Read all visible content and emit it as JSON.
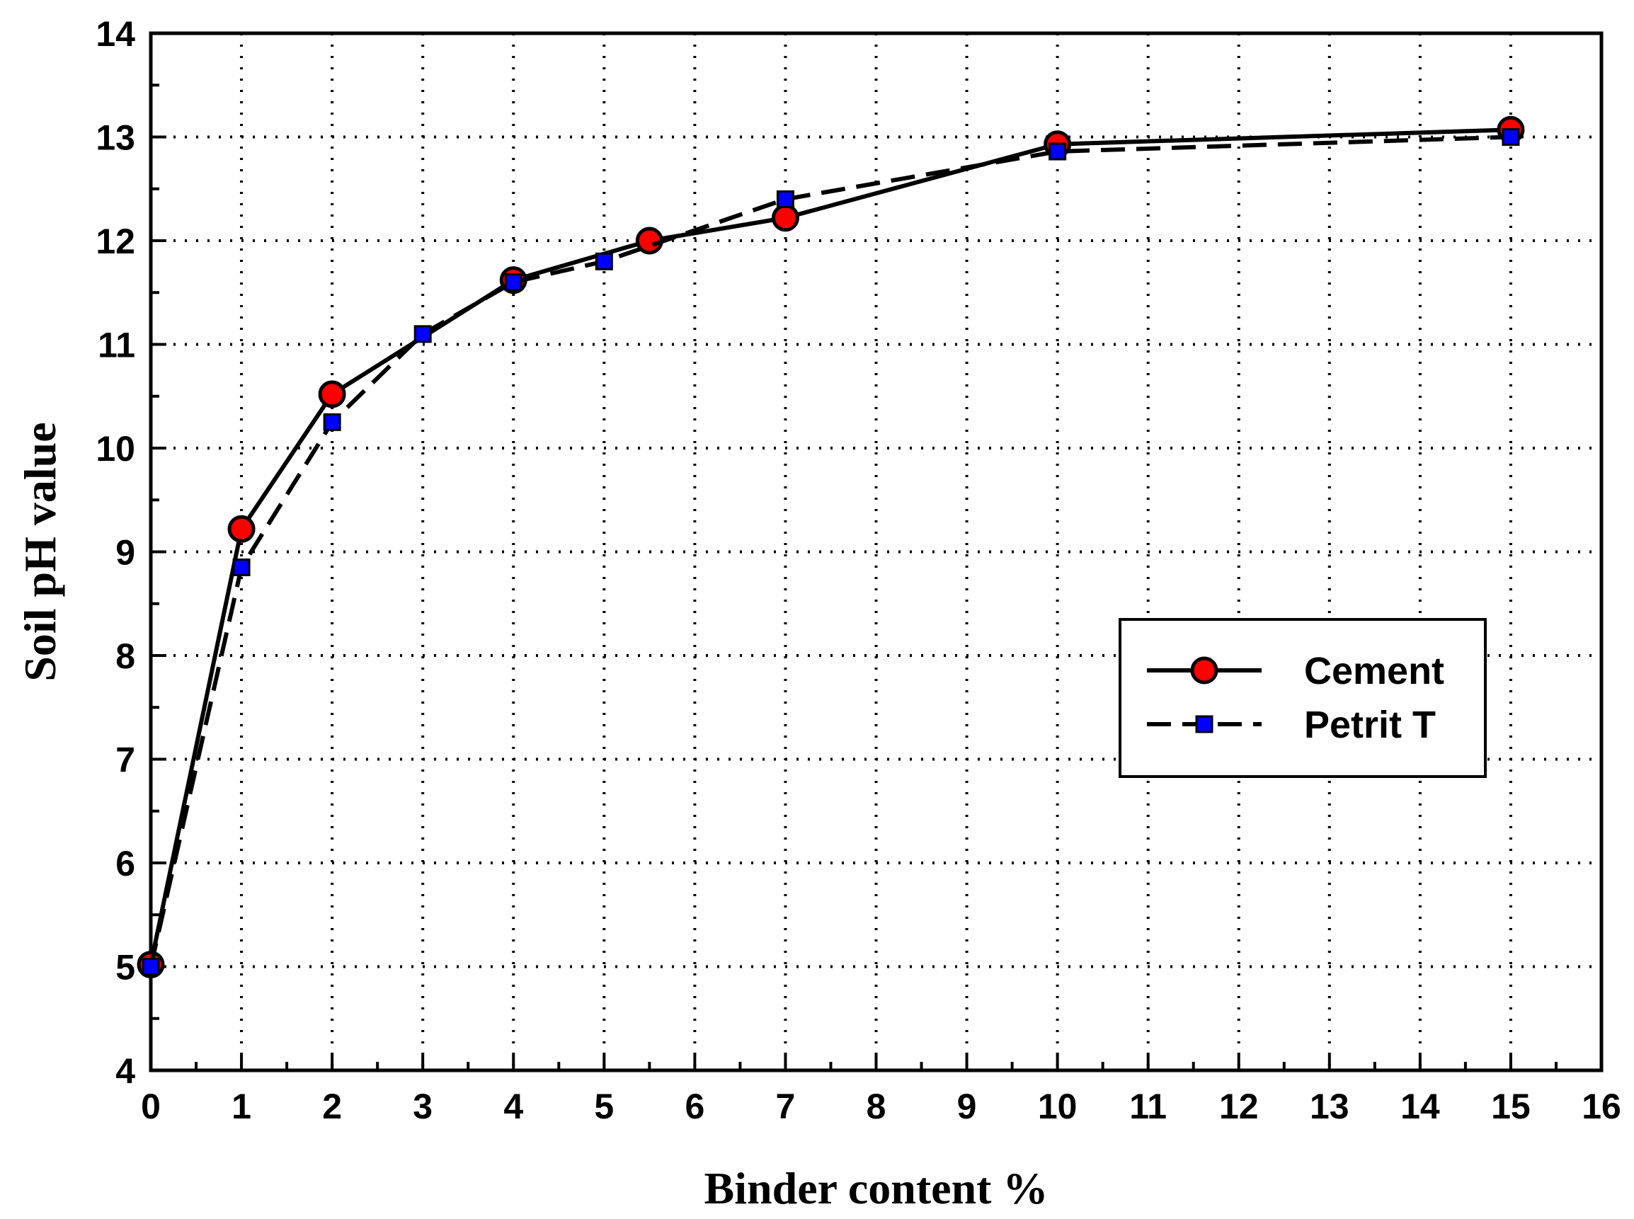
{
  "chart_data": {
    "type": "line",
    "xlabel": "Binder content %",
    "ylabel": "Soil pH value",
    "xlim": [
      0,
      16
    ],
    "ylim": [
      4,
      14
    ],
    "xticks": [
      0,
      1,
      2,
      3,
      4,
      5,
      6,
      7,
      8,
      9,
      10,
      11,
      12,
      13,
      14,
      15,
      16
    ],
    "yticks": [
      4,
      5,
      6,
      7,
      8,
      9,
      10,
      11,
      12,
      13,
      14
    ],
    "grid": true,
    "legend_position": "right",
    "series": [
      {
        "name": "Cement",
        "line": "solid",
        "marker": "circle",
        "marker_color": "#ff0000",
        "x": [
          0,
          1,
          2,
          4,
          5.5,
          7,
          10,
          15
        ],
        "y": [
          5.02,
          9.22,
          10.52,
          11.62,
          12.0,
          12.22,
          12.93,
          13.07
        ]
      },
      {
        "name": "Petrit T",
        "line": "dashed",
        "marker": "square",
        "marker_color": "#0000ff",
        "x": [
          0,
          1,
          2,
          3,
          4,
          5,
          7,
          10,
          15
        ],
        "y": [
          5.0,
          8.85,
          10.25,
          11.1,
          11.6,
          11.8,
          12.4,
          12.86,
          13.0
        ]
      }
    ]
  }
}
